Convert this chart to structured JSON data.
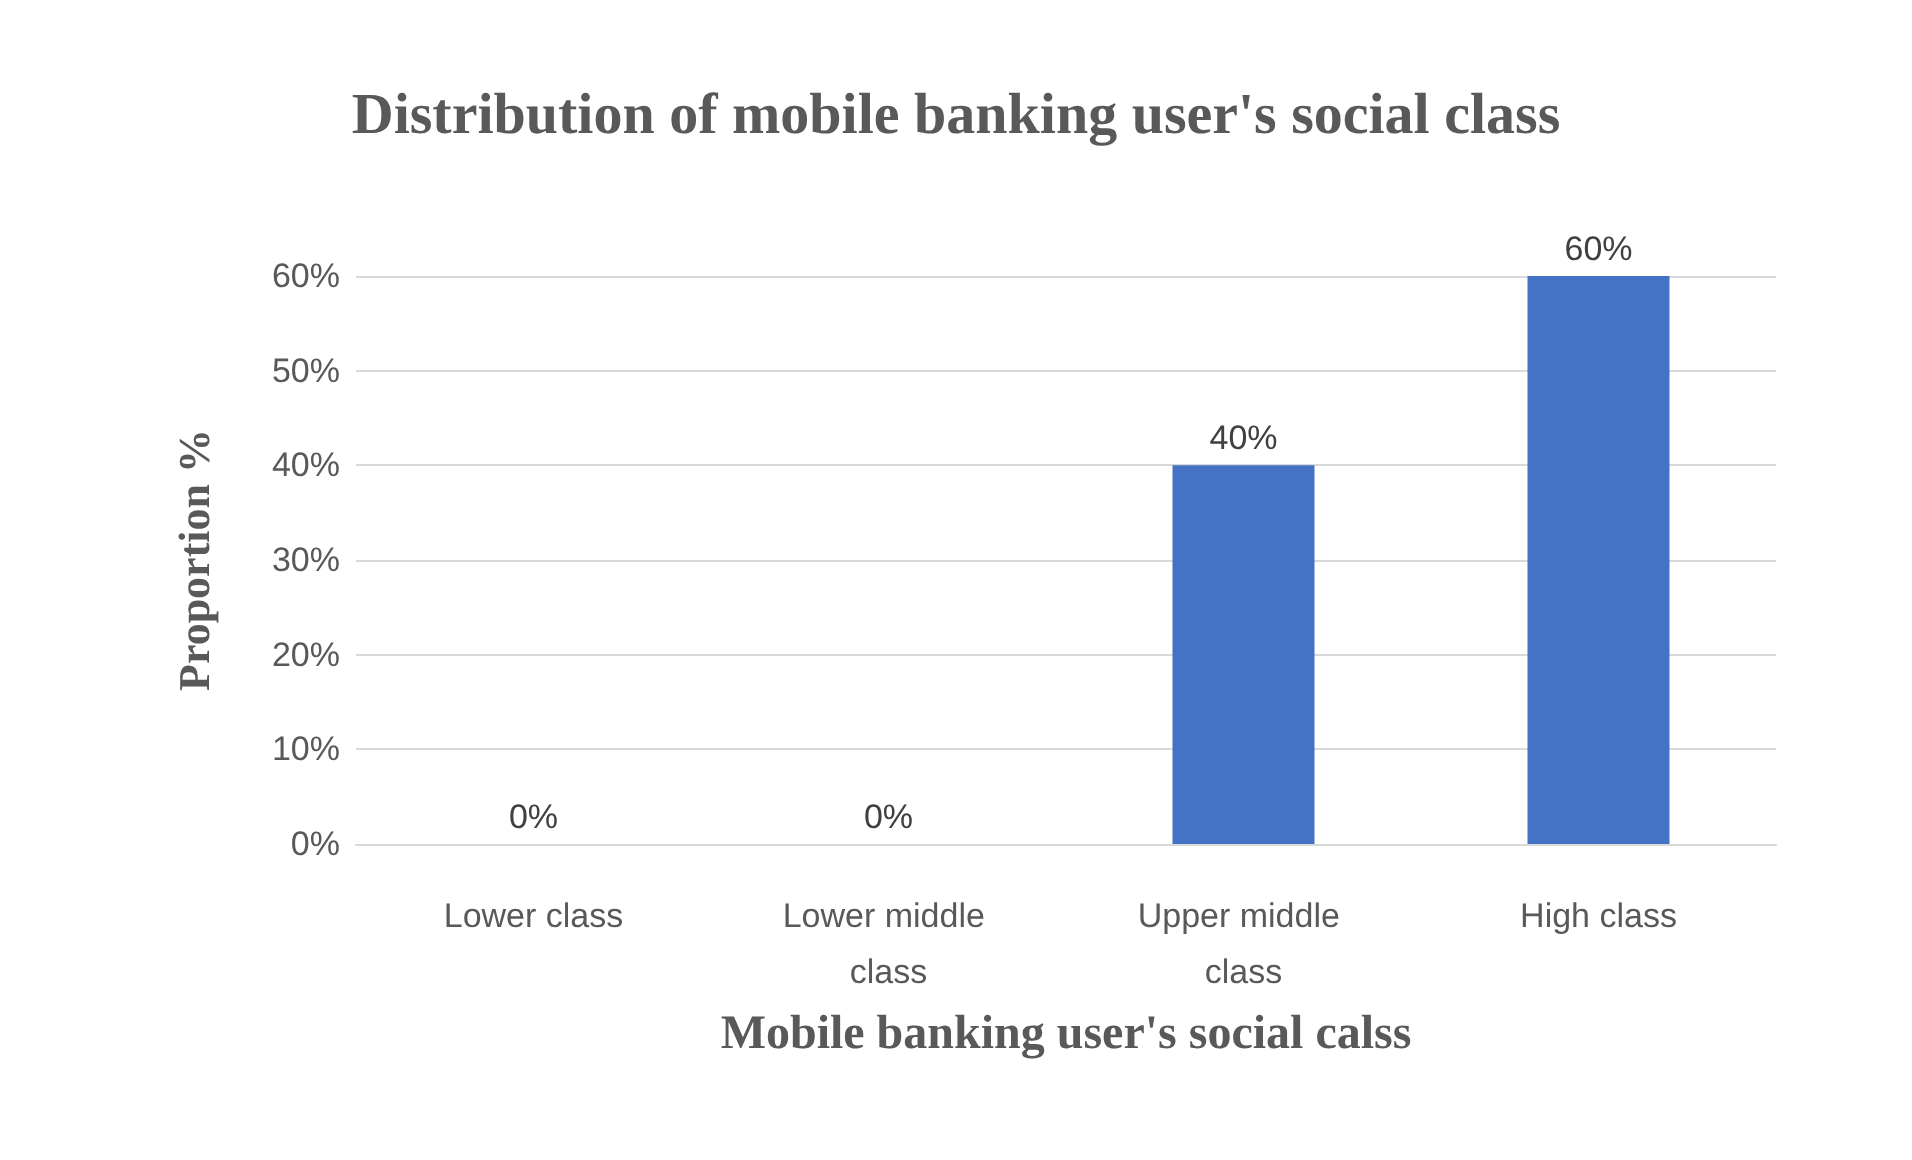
{
  "chart_data": {
    "type": "bar",
    "title": "Distribution of mobile banking user's social class",
    "xlabel": "Mobile banking user's social calss",
    "ylabel": "Proportion %",
    "categories": [
      "Lower class",
      "Lower middle class",
      "Upper middle class",
      "High class"
    ],
    "values": [
      0,
      0,
      40,
      60
    ],
    "color": "#4472c4",
    "value_labels": [
      "0%",
      "0%",
      "40%",
      "60%"
    ],
    "ylim": [
      0,
      60
    ],
    "yticks": [
      {
        "value": 0,
        "label": "0%"
      },
      {
        "value": 10,
        "label": "10%"
      },
      {
        "value": 20,
        "label": "20%"
      },
      {
        "value": 30,
        "label": "30%"
      },
      {
        "value": 40,
        "label": "40%"
      },
      {
        "value": 50,
        "label": "50%"
      },
      {
        "value": 60,
        "label": "60%"
      }
    ],
    "grid": "y"
  }
}
